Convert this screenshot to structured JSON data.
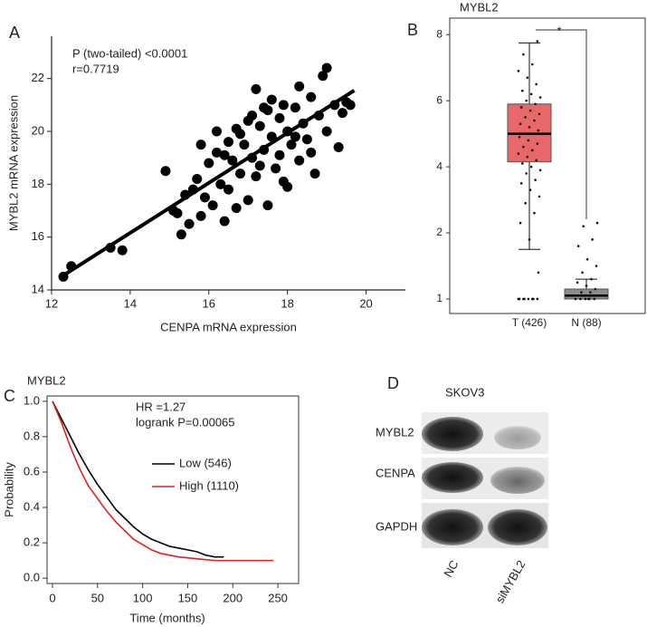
{
  "panel_labels": [
    "A",
    "B",
    "C",
    "D"
  ],
  "chart_data": [
    {
      "type": "scatter",
      "annotations": [
        "P (two-tailed) <0.0001",
        "r=0.7719"
      ],
      "xlabel": "CENPA mRNA expression",
      "ylabel": "MYBL2 mRNA expression",
      "color": "#000000",
      "x": [
        12.3,
        12.5,
        13.5,
        13.8,
        14.9,
        15.1,
        15.2,
        15.3,
        15.4,
        15.5,
        15.6,
        15.7,
        15.8,
        15.9,
        16.0,
        16.1,
        16.2,
        16.3,
        16.4,
        16.5,
        16.5,
        16.6,
        16.7,
        16.8,
        16.9,
        17.0,
        17.0,
        17.1,
        17.2,
        17.2,
        17.3,
        17.4,
        17.5,
        17.5,
        17.6,
        17.7,
        17.8,
        17.8,
        17.9,
        18.0,
        18.0,
        18.1,
        18.2,
        18.3,
        18.3,
        18.4,
        18.5,
        18.6,
        18.7,
        18.8,
        18.9,
        19.0,
        19.2,
        19.3,
        19.4,
        19.5,
        19.6,
        16.8,
        17.4,
        17.1,
        16.2,
        15.8,
        17.9,
        18.6,
        16.7,
        17.6,
        18.2,
        19.0,
        17.3,
        16.4
      ],
      "y": [
        14.5,
        14.9,
        15.6,
        15.5,
        18.5,
        17.0,
        16.9,
        16.1,
        17.6,
        16.5,
        17.8,
        18.2,
        16.8,
        17.5,
        18.8,
        17.2,
        19.2,
        18.0,
        16.6,
        19.6,
        17.8,
        18.9,
        20.1,
        18.4,
        19.5,
        17.4,
        20.4,
        19.0,
        18.3,
        21.6,
        20.2,
        19.3,
        17.2,
        20.8,
        19.8,
        18.6,
        20.5,
        19.1,
        21.0,
        20.0,
        17.9,
        19.5,
        20.9,
        18.9,
        21.7,
        20.3,
        19.7,
        21.3,
        18.4,
        20.6,
        22.1,
        20.0,
        21.0,
        19.4,
        20.7,
        21.1,
        21.0,
        19.9,
        20.9,
        20.6,
        20.0,
        19.5,
        18.1,
        19.2,
        17.1,
        21.2,
        19.8,
        22.4,
        18.7,
        19.1
      ],
      "fit": {
        "x": [
          12.3,
          19.7
        ],
        "y": [
          14.55,
          21.55
        ]
      },
      "xlim": [
        12,
        21
      ],
      "ylim": [
        14,
        23.6
      ],
      "xticks": [
        12,
        14,
        16,
        18,
        20
      ],
      "yticks": [
        14,
        16,
        18,
        20,
        22
      ]
    },
    {
      "type": "box",
      "title": "MYBL2",
      "categories": [
        "T (426)",
        "N (88)"
      ],
      "colors": [
        "#e8686a",
        "#8c8c8c"
      ],
      "boxes": [
        {
          "min": 1.75,
          "q1": 4.15,
          "median": 5.0,
          "q3": 5.9,
          "max": 7.75
        },
        {
          "min": 1.0,
          "q1": 1.0,
          "median": 1.05,
          "q3": 1.15,
          "max": 1.3
        }
      ],
      "points": [
        [
          1.0,
          1.0,
          1.0,
          1.0,
          1.0,
          1.0,
          1.0,
          1.0,
          1.4,
          1.9,
          2.3,
          2.6,
          2.9,
          3.1,
          3.3,
          3.5,
          3.6,
          3.8,
          3.9,
          4.0,
          4.1,
          4.2,
          4.3,
          4.4,
          4.5,
          4.6,
          4.7,
          4.8,
          4.9,
          5.0,
          5.0,
          5.1,
          5.2,
          5.3,
          5.4,
          5.5,
          5.6,
          5.7,
          5.8,
          5.9,
          6.0,
          6.1,
          6.2,
          6.3,
          6.5,
          6.7,
          6.9,
          7.1,
          7.4,
          7.8
        ],
        [
          1.0,
          1.0,
          1.0,
          1.0,
          1.0,
          1.05,
          1.1,
          1.1,
          1.15,
          1.2,
          1.25,
          1.3,
          1.4,
          1.5,
          1.6,
          1.8,
          1.9,
          2.2,
          2.3,
          1.0
        ]
      ],
      "annotation": "*",
      "annotation_color": "#ff4040",
      "ylim": [
        0.78,
        8.5
      ],
      "yticks": [
        1,
        2,
        4,
        6,
        8
      ]
    },
    {
      "type": "line",
      "title": "MYBL2",
      "annotations": [
        "HR =1.27",
        "logrank P=0.00065"
      ],
      "xlabel": "Time (months)",
      "ylabel": "Probability",
      "series": [
        {
          "name": "Low (546)",
          "color": "#000000",
          "x": [
            0,
            10,
            20,
            30,
            40,
            50,
            60,
            70,
            80,
            90,
            100,
            110,
            120,
            130,
            140,
            150,
            160,
            170,
            180,
            190
          ],
          "values": [
            1,
            0.9,
            0.8,
            0.7,
            0.61,
            0.53,
            0.46,
            0.39,
            0.34,
            0.29,
            0.25,
            0.22,
            0.2,
            0.18,
            0.17,
            0.16,
            0.15,
            0.13,
            0.12,
            0.12
          ]
        },
        {
          "name": "High (1110)",
          "color": "#e02020",
          "x": [
            0,
            10,
            20,
            30,
            40,
            50,
            60,
            70,
            80,
            90,
            100,
            110,
            120,
            140,
            160,
            180,
            200,
            245
          ],
          "values": [
            1,
            0.88,
            0.74,
            0.62,
            0.52,
            0.45,
            0.38,
            0.32,
            0.27,
            0.22,
            0.19,
            0.16,
            0.14,
            0.12,
            0.11,
            0.1,
            0.1,
            0.1
          ]
        }
      ],
      "xlim": [
        -6,
        273
      ],
      "ylim": [
        -0.03,
        1.03
      ],
      "xticks": [
        0,
        50,
        100,
        150,
        200,
        250
      ],
      "yticks": [
        {
          "value": 0,
          "label": "0.0"
        },
        0.2,
        0.4,
        0.6,
        0.8,
        {
          "value": 1,
          "label": "1.0"
        }
      ]
    }
  ],
  "blot": {
    "title": "SKOV3",
    "rows": [
      "MYBL2",
      "CENPA",
      "GAPDH"
    ],
    "lanes": [
      "NC",
      "siMYBL2"
    ]
  }
}
